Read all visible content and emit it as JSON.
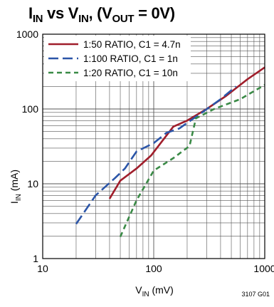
{
  "title": {
    "i": "I",
    "i_sub": "IN",
    "vs": " vs ",
    "v": "V",
    "v_sub": "IN",
    "rest_open": ", (V",
    "vout_sub": "OUT",
    "rest_close": " = 0V)"
  },
  "figure_number": "3107 G01",
  "chart_data": {
    "type": "line",
    "title": "IIN vs VIN, (VOUT = 0V)",
    "xlabel": "VIN (mV)",
    "ylabel": "IIN (mA)",
    "xscale": "log",
    "yscale": "log",
    "xlim": [
      10,
      1000
    ],
    "ylim": [
      1,
      1000
    ],
    "grid": true,
    "legend_placement": "top-left",
    "x_ticks": [
      "10",
      "100",
      "1000"
    ],
    "y_ticks": [
      "1",
      "10",
      "100",
      "1000"
    ],
    "series": [
      {
        "name": "1:50 RATIO, C1 = 4.7n",
        "color": "#a01e2b",
        "dash": "solid",
        "x": [
          40,
          50,
          70,
          95,
          150,
          200,
          300,
          450,
          700,
          1000
        ],
        "y": [
          6.3,
          11,
          16,
          24,
          58,
          70,
          100,
          150,
          250,
          360
        ]
      },
      {
        "name": "1:100 RATIO, C1 = 1n",
        "color": "#2b55a8",
        "dash": "long",
        "x": [
          20,
          30,
          45,
          55,
          70,
          100,
          130,
          170,
          250,
          400,
          550
        ],
        "y": [
          2.9,
          7,
          12,
          16,
          27,
          35,
          48,
          55,
          82,
          135,
          200
        ]
      },
      {
        "name": "1:20 RATIO, C1 = 10n",
        "color": "#3a8a46",
        "dash": "short",
        "x": [
          50,
          70,
          100,
          150,
          210,
          240,
          350,
          600,
          1000
        ],
        "y": [
          1.95,
          6,
          15,
          22,
          32,
          75,
          100,
          135,
          210
        ]
      }
    ]
  }
}
